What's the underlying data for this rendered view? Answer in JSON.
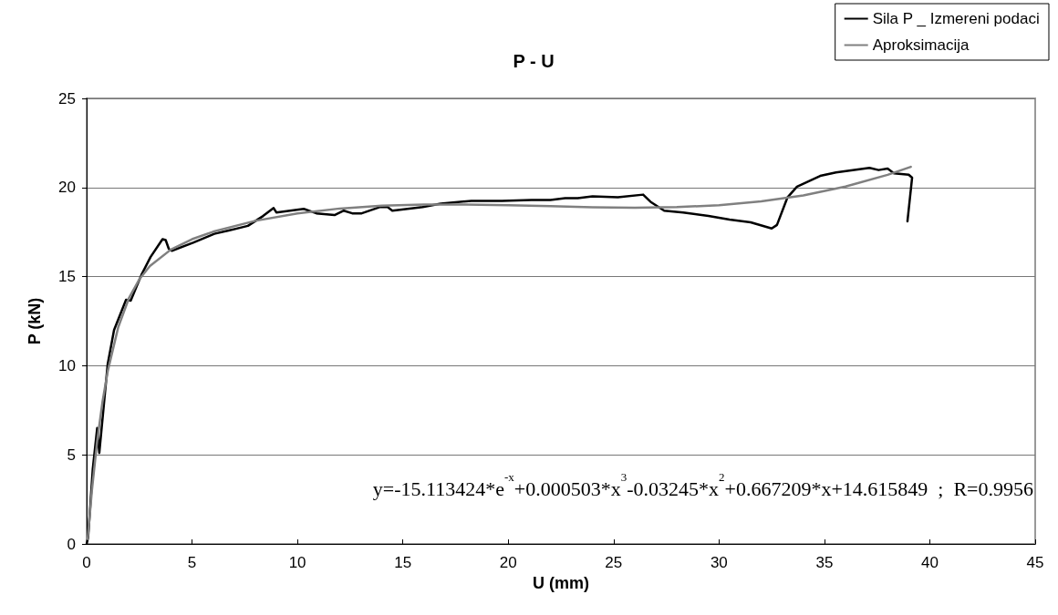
{
  "chart_data": {
    "type": "line",
    "title": "P - U",
    "xlabel": "U (mm)",
    "ylabel": "P (kN)",
    "xlim": [
      0,
      45
    ],
    "xticks": [
      0,
      5,
      10,
      15,
      20,
      25,
      30,
      35,
      40,
      45
    ],
    "ylim": [
      0,
      25
    ],
    "yticks": [
      0,
      5,
      10,
      15,
      20,
      25
    ],
    "grid": "y",
    "legend": "top right",
    "marker": "none",
    "line_style": "solid",
    "annotations": [
      "y=-15.113424*e$^{-x}$+0.000503*x$^{3}$-0.03245*x$^{2}$+0.667209*x+14.615849  ;  R=0.9956"
    ],
    "series": [
      {
        "name": "Sila P _ Izmereni podaci",
        "color": "#000000",
        "x": [
          0,
          0.07,
          0.29,
          0.5,
          0.6,
          1.0,
          1.3,
          1.87,
          2.09,
          2.6,
          3.03,
          3.6,
          3.75,
          3.9,
          4.04,
          5.05,
          6.06,
          6.78,
          7.65,
          8.37,
          8.87,
          9.0,
          10.3,
          10.9,
          11.76,
          12.2,
          12.6,
          13.05,
          13.9,
          14.28,
          14.5,
          15.94,
          16.8,
          18.25,
          19.7,
          21.1,
          22.0,
          22.7,
          23.3,
          24.0,
          25.2,
          26.4,
          26.75,
          27.4,
          28.3,
          29.5,
          30.5,
          31.5,
          32.5,
          32.75,
          33.25,
          33.7,
          34.8,
          35.55,
          37.14,
          37.57,
          38.0,
          38.3,
          39.0,
          39.16,
          38.94
        ],
        "values": [
          0,
          0.36,
          4.2,
          6.5,
          5.1,
          10.1,
          12.0,
          13.7,
          13.65,
          15.1,
          16.1,
          17.1,
          17.05,
          16.55,
          16.45,
          16.9,
          17.4,
          17.6,
          17.85,
          18.4,
          18.85,
          18.6,
          18.8,
          18.55,
          18.45,
          18.7,
          18.55,
          18.55,
          18.9,
          18.9,
          18.7,
          18.9,
          19.1,
          19.25,
          19.25,
          19.3,
          19.3,
          19.4,
          19.4,
          19.5,
          19.45,
          19.6,
          19.2,
          18.7,
          18.6,
          18.4,
          18.2,
          18.05,
          17.7,
          17.9,
          19.45,
          20.05,
          20.65,
          20.85,
          21.1,
          20.98,
          21.06,
          20.8,
          20.72,
          20.55,
          18.1
        ]
      },
      {
        "name": "Aproksimacija",
        "color": "#808080",
        "x": [
          0.05,
          0.25,
          0.5,
          0.75,
          1,
          1.5,
          2,
          2.5,
          3,
          4,
          5,
          6,
          8,
          10,
          12,
          14,
          16,
          18,
          20,
          22,
          24,
          26,
          28,
          30,
          32,
          34,
          36,
          38,
          39.1
        ],
        "values": [
          0.27,
          3.01,
          5.78,
          7.96,
          9.69,
          12.17,
          13.78,
          14.85,
          15.59,
          16.52,
          17.1,
          17.52,
          18.13,
          18.55,
          18.82,
          18.98,
          19.04,
          19.05,
          19.0,
          18.95,
          18.89,
          18.87,
          18.9,
          19.01,
          19.22,
          19.56,
          20.05,
          20.71,
          21.16
        ]
      }
    ]
  }
}
